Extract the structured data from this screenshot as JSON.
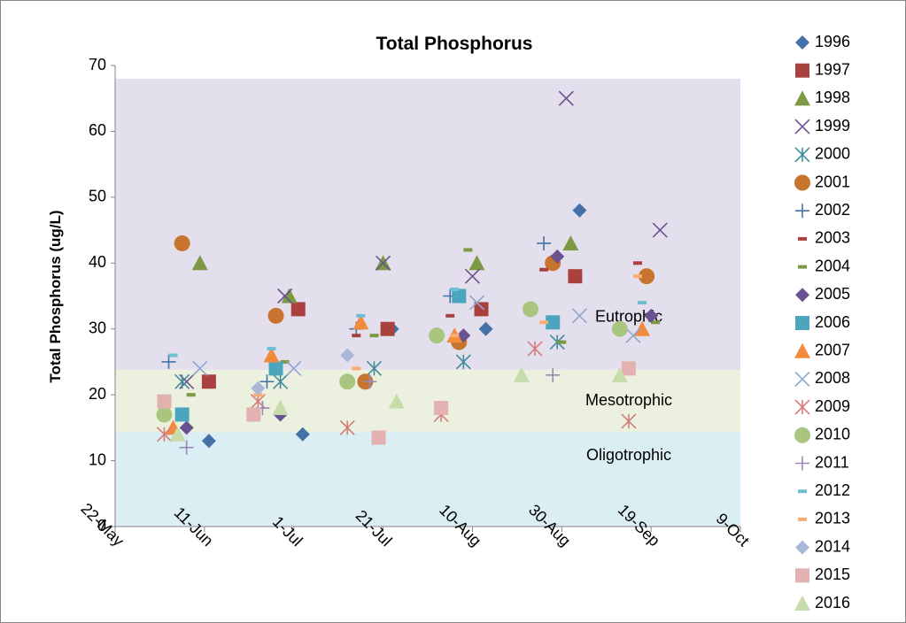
{
  "chart_data": {
    "type": "scatter",
    "title": "Total Phosphorus",
    "y_label": "Total Phosphorus (ug/L)",
    "xlim": [
      142,
      282
    ],
    "xticks": [
      {
        "value": 142,
        "label": "22-May"
      },
      {
        "value": 162,
        "label": "11-Jun"
      },
      {
        "value": 182,
        "label": "1-Jul"
      },
      {
        "value": 202,
        "label": "21-Jul"
      },
      {
        "value": 222,
        "label": "10-Aug"
      },
      {
        "value": 242,
        "label": "30-Aug"
      },
      {
        "value": 262,
        "label": "19-Sep"
      },
      {
        "value": 282,
        "label": "9-Oct"
      }
    ],
    "ylim": [
      0,
      70
    ],
    "yticks": [
      0,
      10,
      20,
      30,
      40,
      50,
      60,
      70
    ],
    "bands": [
      {
        "label": "Eutrophic",
        "from": 23.8,
        "to": 68,
        "color": "#e4dfec"
      },
      {
        "label": "Mesotrophic",
        "from": 14.3,
        "to": 23.8,
        "color": "#ebf1de"
      },
      {
        "label": "Oligotrophic",
        "from": 0,
        "to": 14.3,
        "color": "#daeef3"
      }
    ],
    "series": [
      {
        "name": "1996",
        "marker": "diamond",
        "color": "#4472a8",
        "x": [
          163,
          184,
          204,
          225,
          246
        ],
        "values": [
          13,
          14,
          30,
          30,
          48
        ]
      },
      {
        "name": "1997",
        "marker": "square",
        "color": "#a9423f",
        "x": [
          163,
          183,
          203,
          224,
          245
        ],
        "values": [
          22,
          33,
          30,
          33,
          38
        ]
      },
      {
        "name": "1998",
        "marker": "triangle",
        "color": "#7b9a43",
        "x": [
          161,
          181,
          202,
          223,
          244
        ],
        "values": [
          40,
          35,
          40,
          40,
          43
        ]
      },
      {
        "name": "1999",
        "marker": "x",
        "color": "#6a5290",
        "x": [
          158,
          180,
          202,
          222,
          243,
          264
        ],
        "values": [
          22,
          35,
          40,
          38,
          65,
          45
        ]
      },
      {
        "name": "2000",
        "marker": "star",
        "color": "#3f8c9c",
        "x": [
          157,
          179,
          200,
          220,
          241
        ],
        "values": [
          22,
          22,
          24,
          25,
          28
        ]
      },
      {
        "name": "2001",
        "marker": "circle",
        "color": "#c7752e",
        "x": [
          157,
          178,
          198,
          219,
          240,
          261
        ],
        "values": [
          43,
          32,
          22,
          28,
          40,
          38
        ]
      },
      {
        "name": "2002",
        "marker": "plus",
        "color": "#4472a8",
        "x": [
          154,
          176,
          196,
          217,
          238
        ],
        "values": [
          25,
          22,
          30,
          35,
          43
        ]
      },
      {
        "name": "2003",
        "marker": "dash",
        "color": "#a9423f",
        "x": [
          196,
          217,
          238,
          259
        ],
        "values": [
          29,
          32,
          39,
          40
        ]
      },
      {
        "name": "2004",
        "marker": "dash",
        "color": "#7b9a43",
        "x": [
          159,
          180,
          200,
          221,
          242,
          263
        ],
        "values": [
          20,
          25,
          29,
          42,
          28,
          31
        ]
      },
      {
        "name": "2005",
        "marker": "diamond",
        "color": "#6a5290",
        "x": [
          158,
          179,
          220,
          241,
          262
        ],
        "values": [
          15,
          17,
          29,
          41,
          32
        ]
      },
      {
        "name": "2006",
        "marker": "square",
        "color": "#4aa5bd",
        "x": [
          157,
          178,
          219,
          240
        ],
        "values": [
          17,
          24,
          35,
          31
        ]
      },
      {
        "name": "2007",
        "marker": "triangle",
        "color": "#f28a3c",
        "x": [
          155,
          177,
          197,
          218,
          260
        ],
        "values": [
          15,
          26,
          31,
          29,
          30
        ]
      },
      {
        "name": "2008",
        "marker": "x",
        "color": "#8ea5d0",
        "x": [
          161,
          182,
          223,
          246,
          258
        ],
        "values": [
          24,
          24,
          34,
          32,
          29
        ]
      },
      {
        "name": "2009",
        "marker": "star",
        "color": "#d47c79",
        "x": [
          153,
          174,
          194,
          215,
          236,
          257
        ],
        "values": [
          14,
          19,
          15,
          17,
          27,
          16
        ]
      },
      {
        "name": "2010",
        "marker": "circle",
        "color": "#a9c680",
        "x": [
          153,
          194,
          214,
          235,
          255
        ],
        "values": [
          17,
          22,
          29,
          33,
          30
        ]
      },
      {
        "name": "2011",
        "marker": "plus",
        "color": "#9a88b4",
        "x": [
          158,
          175,
          199,
          240
        ],
        "values": [
          12,
          18,
          22,
          23
        ]
      },
      {
        "name": "2012",
        "marker": "dash",
        "color": "#6fbdd1",
        "x": [
          155,
          177,
          197,
          218,
          260
        ],
        "values": [
          26,
          27,
          32,
          36,
          34
        ]
      },
      {
        "name": "2013",
        "marker": "dash",
        "color": "#f9ad75",
        "x": [
          174,
          196,
          218,
          238,
          259
        ],
        "values": [
          20,
          24,
          29,
          31,
          38
        ]
      },
      {
        "name": "2014",
        "marker": "diamond",
        "color": "#a9b8d9",
        "x": [
          153,
          174,
          194
        ],
        "values": [
          19,
          21,
          26
        ]
      },
      {
        "name": "2015",
        "marker": "square",
        "color": "#e2b1b0",
        "x": [
          153,
          173,
          201,
          215,
          257
        ],
        "values": [
          19,
          17,
          13.5,
          18,
          24
        ]
      },
      {
        "name": "2016",
        "marker": "triangle",
        "color": "#c8dbaa",
        "x": [
          156,
          179,
          205,
          233,
          255
        ],
        "values": [
          14,
          18,
          19,
          23,
          23
        ]
      }
    ]
  }
}
